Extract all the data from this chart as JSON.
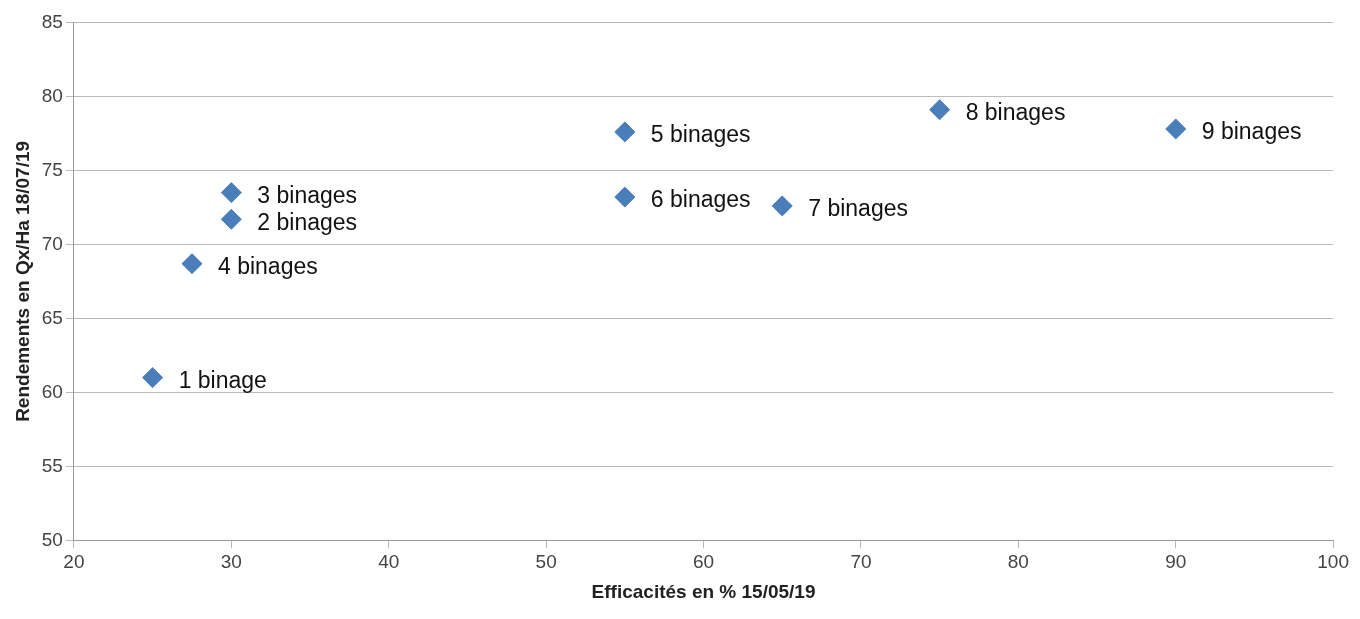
{
  "chart_data": {
    "type": "scatter",
    "xlabel": "Efficacités en % 15/05/19",
    "ylabel": "Rendements en Qx/Ha 18/07/19",
    "x": [
      25,
      30,
      30,
      27.5,
      55,
      55,
      65,
      75,
      90
    ],
    "series": [
      {
        "color": "#4a7ebb",
        "values": [
          61.0,
          71.7,
          73.5,
          68.7,
          77.6,
          73.2,
          72.6,
          79.1,
          77.8
        ]
      }
    ],
    "xlim": [
      20,
      100
    ],
    "xticks": [
      20,
      30,
      40,
      50,
      60,
      70,
      80,
      90,
      100
    ],
    "ylim": [
      50,
      85
    ],
    "yticks": [
      50,
      55,
      60,
      65,
      70,
      75,
      80,
      85
    ],
    "grid": "y",
    "legend": false,
    "marker": "diamond",
    "annotations": [
      {
        "text": "1 binage",
        "x": 25,
        "y": 61.0
      },
      {
        "text": "2 binages",
        "x": 30,
        "y": 71.7
      },
      {
        "text": "3 binages",
        "x": 30,
        "y": 73.5
      },
      {
        "text": "4 binages",
        "x": 27.5,
        "y": 68.7
      },
      {
        "text": "5 binages",
        "x": 55,
        "y": 77.6
      },
      {
        "text": "6 binages",
        "x": 55,
        "y": 73.2
      },
      {
        "text": "7 binages",
        "x": 65,
        "y": 72.6
      },
      {
        "text": "8 binages",
        "x": 75,
        "y": 79.1
      },
      {
        "text": "9 binages",
        "x": 90,
        "y": 77.8
      }
    ]
  }
}
